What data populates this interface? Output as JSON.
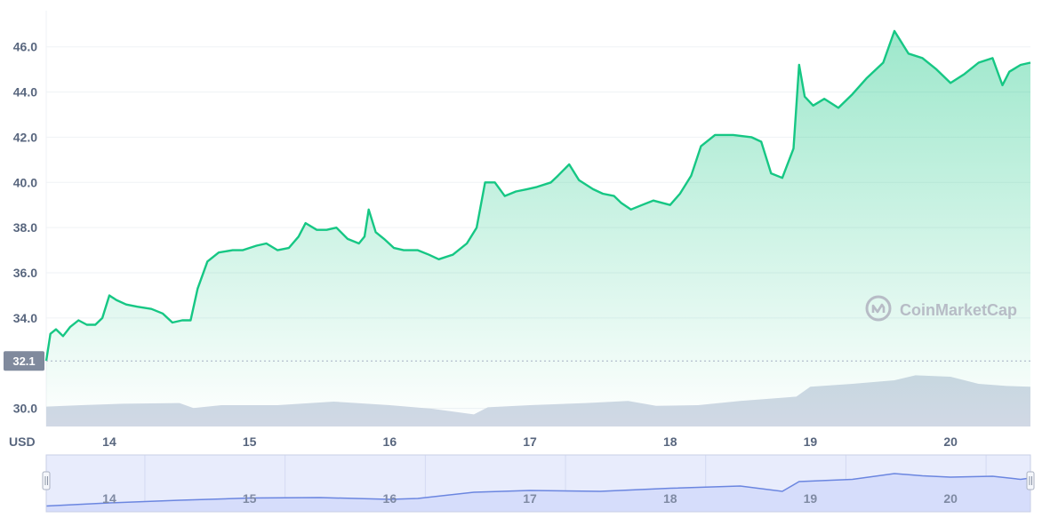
{
  "chart_data": {
    "type": "area",
    "currency_label": "USD",
    "watermark": "CoinMarketCap",
    "reference_price": 32.1,
    "reference_label": "32.1",
    "ylim": [
      29.2,
      47.6
    ],
    "y_ticks": [
      {
        "value": 30.0,
        "label": "30.0"
      },
      {
        "value": 34.0,
        "label": "34.0"
      },
      {
        "value": 36.0,
        "label": "36.0"
      },
      {
        "value": 38.0,
        "label": "38.0"
      },
      {
        "value": 40.0,
        "label": "40.0"
      },
      {
        "value": 42.0,
        "label": "42.0"
      },
      {
        "value": 44.0,
        "label": "44.0"
      },
      {
        "value": 46.0,
        "label": "46.0"
      }
    ],
    "xlim": [
      13.55,
      20.57
    ],
    "x_ticks": [
      {
        "value": 14,
        "label": "14"
      },
      {
        "value": 15,
        "label": "15"
      },
      {
        "value": 16,
        "label": "16"
      },
      {
        "value": 17,
        "label": "17"
      },
      {
        "value": 18,
        "label": "18"
      },
      {
        "value": 19,
        "label": "19"
      },
      {
        "value": 20,
        "label": "20"
      }
    ],
    "colors": {
      "line": "#16c784",
      "area_top": "#16c784",
      "volume": "#cfd6e4",
      "grid": "#eff2f5",
      "axis_text": "#58667e",
      "navigator_bg": "#e3e8ff",
      "navigator_line": "#6b86e0",
      "reference_badge": "#808a9d"
    },
    "price_series": [
      [
        13.55,
        32.1
      ],
      [
        13.58,
        33.3
      ],
      [
        13.62,
        33.5
      ],
      [
        13.67,
        33.2
      ],
      [
        13.72,
        33.6
      ],
      [
        13.78,
        33.9
      ],
      [
        13.84,
        33.7
      ],
      [
        13.9,
        33.7
      ],
      [
        13.95,
        34.0
      ],
      [
        14.0,
        35.0
      ],
      [
        14.05,
        34.8
      ],
      [
        14.12,
        34.6
      ],
      [
        14.2,
        34.5
      ],
      [
        14.3,
        34.4
      ],
      [
        14.38,
        34.2
      ],
      [
        14.45,
        33.8
      ],
      [
        14.52,
        33.9
      ],
      [
        14.58,
        33.9
      ],
      [
        14.63,
        35.3
      ],
      [
        14.7,
        36.5
      ],
      [
        14.78,
        36.9
      ],
      [
        14.88,
        37.0
      ],
      [
        14.95,
        37.0
      ],
      [
        15.05,
        37.2
      ],
      [
        15.12,
        37.3
      ],
      [
        15.2,
        37.0
      ],
      [
        15.28,
        37.1
      ],
      [
        15.35,
        37.6
      ],
      [
        15.4,
        38.2
      ],
      [
        15.48,
        37.9
      ],
      [
        15.55,
        37.9
      ],
      [
        15.62,
        38.0
      ],
      [
        15.7,
        37.5
      ],
      [
        15.78,
        37.3
      ],
      [
        15.82,
        37.6
      ],
      [
        15.85,
        38.8
      ],
      [
        15.9,
        37.8
      ],
      [
        15.96,
        37.5
      ],
      [
        16.03,
        37.1
      ],
      [
        16.1,
        37.0
      ],
      [
        16.2,
        37.0
      ],
      [
        16.28,
        36.8
      ],
      [
        16.35,
        36.6
      ],
      [
        16.45,
        36.8
      ],
      [
        16.55,
        37.3
      ],
      [
        16.62,
        38.0
      ],
      [
        16.68,
        40.0
      ],
      [
        16.75,
        40.0
      ],
      [
        16.82,
        39.4
      ],
      [
        16.9,
        39.6
      ],
      [
        16.98,
        39.7
      ],
      [
        17.05,
        39.8
      ],
      [
        17.15,
        40.0
      ],
      [
        17.2,
        40.3
      ],
      [
        17.28,
        40.8
      ],
      [
        17.35,
        40.1
      ],
      [
        17.45,
        39.7
      ],
      [
        17.52,
        39.5
      ],
      [
        17.6,
        39.4
      ],
      [
        17.65,
        39.1
      ],
      [
        17.72,
        38.8
      ],
      [
        17.8,
        39.0
      ],
      [
        17.88,
        39.2
      ],
      [
        18.0,
        39.0
      ],
      [
        18.07,
        39.5
      ],
      [
        18.15,
        40.3
      ],
      [
        18.22,
        41.6
      ],
      [
        18.32,
        42.1
      ],
      [
        18.45,
        42.1
      ],
      [
        18.58,
        42.0
      ],
      [
        18.65,
        41.8
      ],
      [
        18.72,
        40.4
      ],
      [
        18.8,
        40.2
      ],
      [
        18.88,
        41.5
      ],
      [
        18.92,
        45.2
      ],
      [
        18.96,
        43.8
      ],
      [
        19.02,
        43.4
      ],
      [
        19.1,
        43.7
      ],
      [
        19.2,
        43.3
      ],
      [
        19.3,
        43.9
      ],
      [
        19.4,
        44.6
      ],
      [
        19.52,
        45.3
      ],
      [
        19.6,
        46.7
      ],
      [
        19.7,
        45.7
      ],
      [
        19.8,
        45.5
      ],
      [
        19.9,
        45.0
      ],
      [
        20.0,
        44.4
      ],
      [
        20.1,
        44.8
      ],
      [
        20.2,
        45.3
      ],
      [
        20.3,
        45.5
      ],
      [
        20.37,
        44.3
      ],
      [
        20.42,
        44.9
      ],
      [
        20.5,
        45.2
      ],
      [
        20.57,
        45.3
      ]
    ],
    "volume_series": [
      [
        13.55,
        0.28
      ],
      [
        13.8,
        0.3
      ],
      [
        14.1,
        0.32
      ],
      [
        14.5,
        0.33
      ],
      [
        14.6,
        0.26
      ],
      [
        14.8,
        0.3
      ],
      [
        15.2,
        0.3
      ],
      [
        15.6,
        0.35
      ],
      [
        16.0,
        0.3
      ],
      [
        16.3,
        0.25
      ],
      [
        16.6,
        0.17
      ],
      [
        16.7,
        0.27
      ],
      [
        17.0,
        0.3
      ],
      [
        17.4,
        0.33
      ],
      [
        17.7,
        0.36
      ],
      [
        17.9,
        0.29
      ],
      [
        18.2,
        0.3
      ],
      [
        18.5,
        0.36
      ],
      [
        18.9,
        0.42
      ],
      [
        19.0,
        0.56
      ],
      [
        19.3,
        0.6
      ],
      [
        19.6,
        0.65
      ],
      [
        19.75,
        0.72
      ],
      [
        20.0,
        0.7
      ],
      [
        20.2,
        0.6
      ],
      [
        20.4,
        0.57
      ],
      [
        20.57,
        0.56
      ]
    ],
    "volume_scale": [
      0,
      1
    ],
    "navigator": {
      "x_ticks": [
        {
          "value": 14,
          "label": "14"
        },
        {
          "value": 15,
          "label": "15"
        },
        {
          "value": 16,
          "label": "16"
        },
        {
          "value": 17,
          "label": "17"
        },
        {
          "value": 18,
          "label": "18"
        },
        {
          "value": 19,
          "label": "19"
        },
        {
          "value": 20,
          "label": "20"
        }
      ],
      "series": [
        [
          13.55,
          0.05
        ],
        [
          14.0,
          0.12
        ],
        [
          14.5,
          0.18
        ],
        [
          15.0,
          0.23
        ],
        [
          15.5,
          0.24
        ],
        [
          16.0,
          0.2
        ],
        [
          16.2,
          0.22
        ],
        [
          16.6,
          0.36
        ],
        [
          17.0,
          0.4
        ],
        [
          17.5,
          0.38
        ],
        [
          18.0,
          0.45
        ],
        [
          18.5,
          0.5
        ],
        [
          18.8,
          0.38
        ],
        [
          18.92,
          0.6
        ],
        [
          19.3,
          0.65
        ],
        [
          19.6,
          0.78
        ],
        [
          19.8,
          0.73
        ],
        [
          20.0,
          0.7
        ],
        [
          20.3,
          0.72
        ],
        [
          20.5,
          0.65
        ],
        [
          20.57,
          0.68
        ]
      ]
    }
  }
}
